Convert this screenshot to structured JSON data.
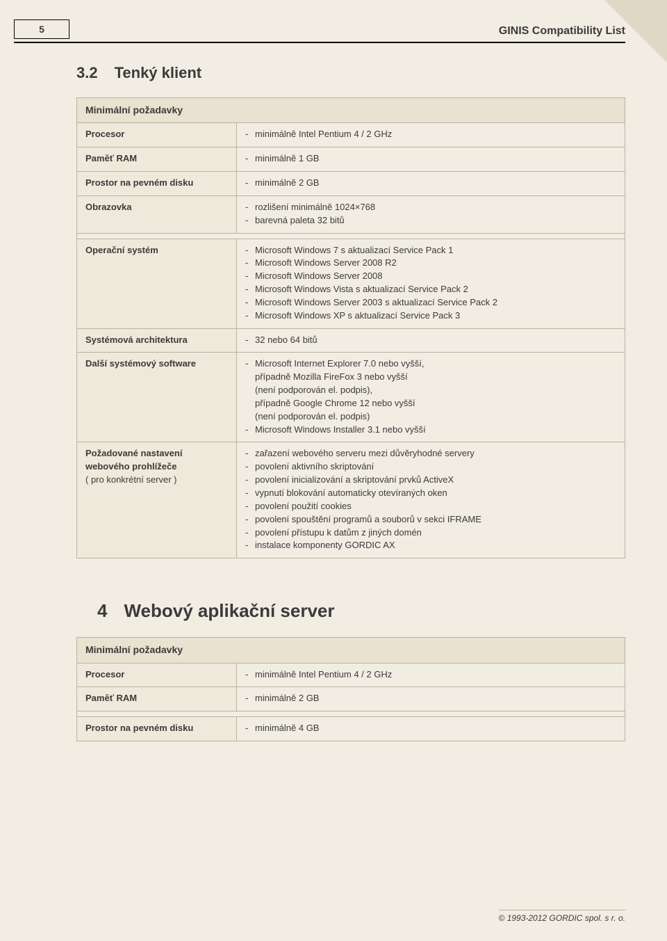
{
  "page_number": "5",
  "header_title": "GINIS Compatibility List",
  "section32": {
    "num": "3.2",
    "title": "Tenký klient",
    "table_caption": "Minimální požadavky",
    "rows": {
      "procesor_label": "Procesor",
      "procesor_val": "minimálně Intel Pentium 4 / 2 GHz",
      "ram_label": "Paměť RAM",
      "ram_val": "minimálně 1 GB",
      "disk_label": "Prostor na pevném disku",
      "disk_val": "minimálně 2 GB",
      "obrazovka_label": "Obrazovka",
      "obrazovka_items": [
        "rozlišení minimálně 1024×768",
        "barevná paleta 32 bitů"
      ],
      "os_label": "Operační systém",
      "os_items": [
        "Microsoft Windows 7 s aktualizací Service Pack 1",
        "Microsoft Windows Server 2008 R2",
        "Microsoft Windows Server 2008",
        "Microsoft Windows Vista s aktualizací Service Pack 2",
        "Microsoft Windows Server 2003 s aktualizací Service Pack 2",
        "Microsoft Windows XP s aktualizací Service Pack 3"
      ],
      "arch_label": "Systémová architektura",
      "arch_val": "32 nebo 64 bitů",
      "sw_label": "Další systémový software",
      "sw_item1_a": "Microsoft Internet Explorer 7.0 nebo vyšší,",
      "sw_item1_b": "případně Mozilla FireFox 3 nebo vyšší",
      "sw_item1_c": "(není podporován el. podpis),",
      "sw_item1_d": "případně Google Chrome 12 nebo vyšší",
      "sw_item1_e": "(není podporován el. podpis)",
      "sw_item2": "Microsoft Windows Installer 3.1 nebo vyšší",
      "browser_label_a": "Požadované nastavení webového prohlížeče",
      "browser_label_b": "( pro konkrétní server )",
      "browser_items": [
        "zařazení webového serveru mezi důvěryhodné servery",
        "povolení aktivního skriptování",
        "povolení inicializování a skriptování prvků ActiveX",
        "vypnutí blokování automaticky otevíraných oken",
        "povolení použití cookies",
        "povolení spouštění programů a souborů v sekci IFRAME",
        "povolení přístupu k datům z jiných domén",
        "instalace komponenty GORDIC AX"
      ]
    }
  },
  "section4": {
    "num": "4",
    "title": "Webový aplikační server",
    "table_caption": "Minimální požadavky",
    "rows": {
      "procesor_label": "Procesor",
      "procesor_val": "minimálně Intel Pentium 4 / 2 GHz",
      "ram_label": "Paměť RAM",
      "ram_val": "minimálně 2 GB",
      "disk_label": "Prostor na pevném disku",
      "disk_val": "minimálně 4 GB"
    }
  },
  "footer": "© 1993-2012 GORDIC spol. s r. o."
}
